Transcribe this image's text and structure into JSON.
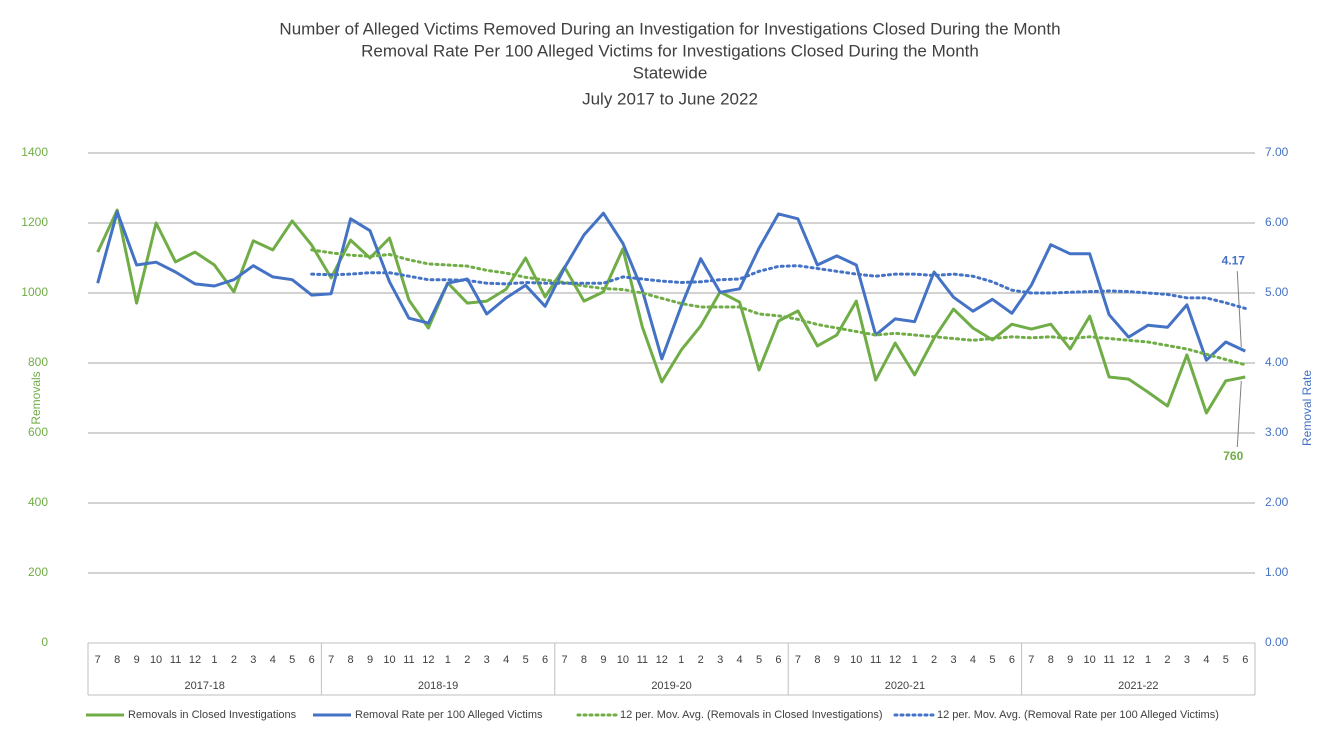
{
  "chart_data": {
    "type": "line",
    "title": [
      "Number of Alleged Victims Removed During an Investigation for Investigations Closed During the Month",
      "Removal Rate Per 100 Alleged Victims for Investigations Closed During the Month",
      "Statewide",
      "July 2017 to June 2022"
    ],
    "ylabel": "Removals",
    "y2label": "Removal Rate",
    "categories": [
      "7",
      "8",
      "9",
      "10",
      "11",
      "12",
      "1",
      "2",
      "3",
      "4",
      "5",
      "6",
      "7",
      "8",
      "9",
      "10",
      "11",
      "12",
      "1",
      "2",
      "3",
      "4",
      "5",
      "6",
      "7",
      "8",
      "9",
      "10",
      "11",
      "12",
      "1",
      "2",
      "3",
      "4",
      "5",
      "6",
      "7",
      "8",
      "9",
      "10",
      "11",
      "12",
      "1",
      "2",
      "3",
      "4",
      "5",
      "6",
      "7",
      "8",
      "9",
      "10",
      "11",
      "12",
      "1",
      "2",
      "3",
      "4",
      "5",
      "6"
    ],
    "category_groups": [
      "2017-18",
      "2018-19",
      "2019-20",
      "2020-21",
      "2021-22"
    ],
    "ylim": [
      0,
      1400
    ],
    "yticks": [
      0,
      200,
      400,
      600,
      800,
      1000,
      1200,
      1400
    ],
    "y2lim": [
      0,
      7
    ],
    "y2ticks": [
      {
        "value": 0,
        "label": "0.00"
      },
      {
        "value": 1,
        "label": "1.00"
      },
      {
        "value": 2,
        "label": "2.00"
      },
      {
        "value": 3,
        "label": "3.00"
      },
      {
        "value": 4,
        "label": "4.00"
      },
      {
        "value": 5,
        "label": "5.00"
      },
      {
        "value": 6,
        "label": "6.00"
      },
      {
        "value": 7,
        "label": "7.00"
      }
    ],
    "grid": true,
    "series": [
      {
        "name": "Removals in Closed Investigations",
        "color": "#70ad47",
        "axis": "y",
        "dashed": false,
        "values": [
          1117,
          1237,
          971,
          1200,
          1089,
          1117,
          1080,
          1003,
          1149,
          1123,
          1206,
          1137,
          1043,
          1151,
          1100,
          1157,
          980,
          900,
          1029,
          971,
          977,
          1011,
          1100,
          989,
          1074,
          977,
          1003,
          1126,
          903,
          746,
          837,
          906,
          1003,
          974,
          780,
          920,
          949,
          849,
          880,
          977,
          751,
          857,
          766,
          871,
          954,
          900,
          866,
          911,
          897,
          911,
          840,
          934,
          760,
          754,
          717,
          677,
          823,
          657,
          749,
          760
        ],
        "value_labels": [
          null,
          null,
          null,
          null,
          null,
          null,
          null,
          null,
          null,
          null,
          null,
          null,
          null,
          null,
          null,
          null,
          null,
          null,
          null,
          null,
          null,
          null,
          null,
          null,
          null,
          null,
          null,
          null,
          null,
          null,
          null,
          null,
          null,
          null,
          null,
          null,
          null,
          null,
          null,
          null,
          null,
          null,
          null,
          null,
          null,
          null,
          null,
          null,
          null,
          null,
          null,
          null,
          null,
          null,
          null,
          null,
          null,
          null,
          null,
          "760"
        ]
      },
      {
        "name": "Removal Rate per 100 Alleged Victims",
        "color": "#4472c4",
        "axis": "y2",
        "dashed": false,
        "values": [
          5.14,
          6.16,
          5.4,
          5.44,
          5.3,
          5.13,
          5.1,
          5.19,
          5.39,
          5.23,
          5.19,
          4.97,
          4.99,
          6.06,
          5.89,
          5.16,
          4.64,
          4.57,
          5.14,
          5.2,
          4.7,
          4.93,
          5.11,
          4.81,
          5.36,
          5.83,
          6.14,
          5.71,
          5.04,
          4.06,
          4.81,
          5.49,
          5.01,
          5.06,
          5.64,
          6.13,
          6.06,
          5.4,
          5.53,
          5.4,
          4.4,
          4.63,
          4.59,
          5.3,
          4.94,
          4.74,
          4.91,
          4.71,
          5.11,
          5.69,
          5.56,
          5.56,
          4.69,
          4.37,
          4.54,
          4.51,
          4.83,
          4.04,
          4.3,
          4.17
        ],
        "value_labels": [
          null,
          null,
          null,
          null,
          null,
          null,
          null,
          null,
          null,
          null,
          null,
          null,
          null,
          null,
          null,
          null,
          null,
          null,
          null,
          null,
          null,
          null,
          null,
          null,
          null,
          null,
          null,
          null,
          null,
          null,
          null,
          null,
          null,
          null,
          null,
          null,
          null,
          null,
          null,
          null,
          null,
          null,
          null,
          null,
          null,
          null,
          null,
          null,
          null,
          null,
          null,
          null,
          null,
          null,
          null,
          null,
          null,
          null,
          null,
          "4.17"
        ]
      },
      {
        "name": "12 per. Mov. Avg. (Removals in Closed Investigations)",
        "color": "#70ad47",
        "axis": "y",
        "dashed": true,
        "values": [
          null,
          null,
          null,
          null,
          null,
          null,
          null,
          null,
          null,
          null,
          null,
          1123,
          1115,
          1108,
          1105,
          1110,
          1095,
          1083,
          1080,
          1077,
          1065,
          1057,
          1045,
          1037,
          1030,
          1020,
          1013,
          1010,
          1000,
          985,
          970,
          960,
          960,
          960,
          940,
          935,
          925,
          910,
          900,
          890,
          880,
          885,
          880,
          875,
          870,
          865,
          870,
          875,
          872,
          875,
          870,
          875,
          870,
          865,
          860,
          850,
          840,
          825,
          810,
          795
        ]
      },
      {
        "name": "12 per. Mov. Avg. (Removal Rate per 100 Alleged Victims)",
        "color": "#4472c4",
        "axis": "y2",
        "dashed": true,
        "values": [
          null,
          null,
          null,
          null,
          null,
          null,
          null,
          null,
          null,
          null,
          null,
          5.27,
          5.26,
          5.27,
          5.29,
          5.29,
          5.24,
          5.19,
          5.19,
          5.18,
          5.14,
          5.13,
          5.15,
          5.14,
          5.14,
          5.14,
          5.14,
          5.23,
          5.2,
          5.17,
          5.15,
          5.16,
          5.19,
          5.2,
          5.31,
          5.38,
          5.39,
          5.35,
          5.31,
          5.27,
          5.24,
          5.27,
          5.27,
          5.25,
          5.27,
          5.24,
          5.16,
          5.04,
          5.0,
          5.0,
          5.01,
          5.02,
          5.03,
          5.02,
          5.0,
          4.98,
          4.93,
          4.93,
          4.86,
          4.78
        ]
      }
    ]
  }
}
